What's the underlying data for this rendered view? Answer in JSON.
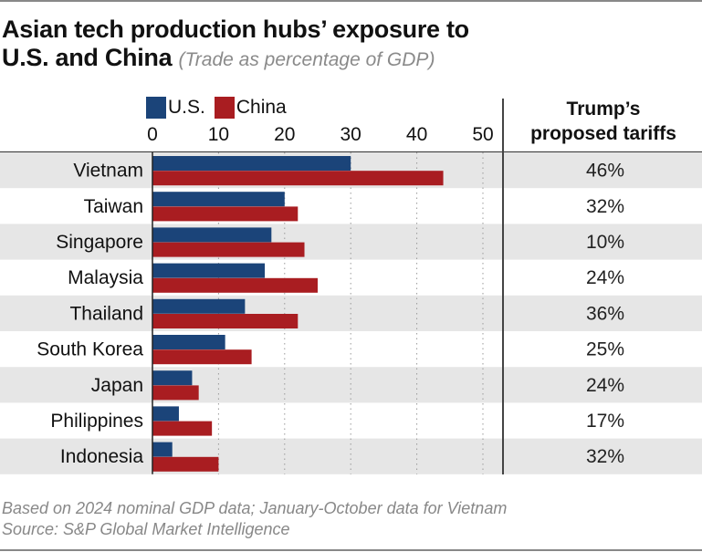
{
  "title": "Asian tech production hubs’ exposure to",
  "title_line2": "U.S. and China",
  "subtitle": "(Trade as percentage of GDP)",
  "column_header_line1": "Trump’s",
  "column_header_line2": "proposed tariffs",
  "footnote_line1": "Based on 2024 nominal GDP data; January-October data for Vietnam",
  "footnote_line2": "Source: S&P Global Market Intelligence",
  "colors": {
    "us": "#1b4479",
    "china": "#a91d21",
    "row_shade": "#e6e6e6"
  },
  "chart_data": {
    "type": "bar",
    "orientation": "horizontal",
    "title": "Asian tech production hubs’ exposure to U.S. and China",
    "subtitle": "(Trade as percentage of GDP)",
    "xlabel": "",
    "ylabel": "",
    "xlim": [
      0,
      50
    ],
    "xticks": [
      0,
      10,
      20,
      30,
      40,
      50
    ],
    "grid": true,
    "legend": "top-left",
    "categories": [
      "Vietnam",
      "Taiwan",
      "Singapore",
      "Malaysia",
      "Thailand",
      "South Korea",
      "Japan",
      "Philippines",
      "Indonesia"
    ],
    "series": [
      {
        "name": "U.S.",
        "values": [
          30,
          20,
          18,
          17,
          14,
          11,
          6,
          4,
          3
        ]
      },
      {
        "name": "China",
        "values": [
          44,
          22,
          23,
          25,
          22,
          15,
          7,
          9,
          10
        ]
      }
    ],
    "table_column": {
      "header": "Trump’s proposed tariffs",
      "values": [
        "46%",
        "32%",
        "10%",
        "24%",
        "36%",
        "25%",
        "24%",
        "17%",
        "32%"
      ]
    }
  }
}
